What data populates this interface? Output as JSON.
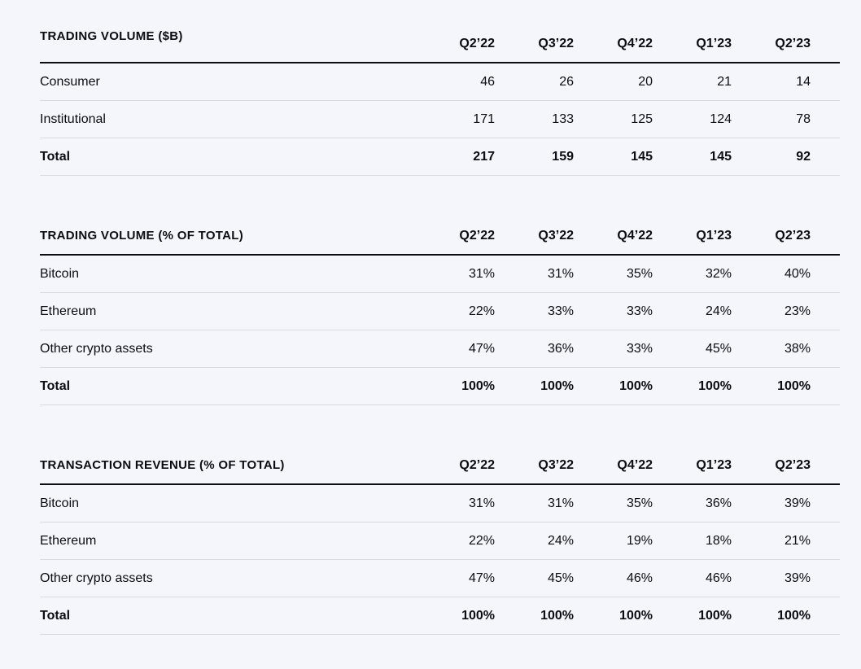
{
  "colors": {
    "background": "#f4f6fb",
    "text": "#0b0d12",
    "heavy_rule": "#0b0d12",
    "divider": "#d7dbe3"
  },
  "columns": [
    "Q2’22",
    "Q3’22",
    "Q4’22",
    "Q1’23",
    "Q2’23"
  ],
  "tables": [
    {
      "title": "TRADING VOLUME ($B)",
      "rows": [
        {
          "label": "Consumer",
          "values": [
            "46",
            "26",
            "20",
            "21",
            "14"
          ]
        },
        {
          "label": "Institutional",
          "values": [
            "171",
            "133",
            "125",
            "124",
            "78"
          ]
        },
        {
          "label": "Total",
          "values": [
            "217",
            "159",
            "145",
            "145",
            "92"
          ]
        }
      ]
    },
    {
      "title": "TRADING VOLUME (% OF TOTAL)",
      "rows": [
        {
          "label": "Bitcoin",
          "values": [
            "31%",
            "31%",
            "35%",
            "32%",
            "40%"
          ]
        },
        {
          "label": "Ethereum",
          "values": [
            "22%",
            "33%",
            "33%",
            "24%",
            "23%"
          ]
        },
        {
          "label": "Other crypto assets",
          "values": [
            "47%",
            "36%",
            "33%",
            "45%",
            "38%"
          ]
        },
        {
          "label": "Total",
          "values": [
            "100%",
            "100%",
            "100%",
            "100%",
            "100%"
          ]
        }
      ]
    },
    {
      "title": "TRANSACTION REVENUE (% OF TOTAL)",
      "rows": [
        {
          "label": "Bitcoin",
          "values": [
            "31%",
            "31%",
            "35%",
            "36%",
            "39%"
          ]
        },
        {
          "label": "Ethereum",
          "values": [
            "22%",
            "24%",
            "19%",
            "18%",
            "21%"
          ]
        },
        {
          "label": "Other crypto assets",
          "values": [
            "47%",
            "45%",
            "46%",
            "46%",
            "39%"
          ]
        },
        {
          "label": "Total",
          "values": [
            "100%",
            "100%",
            "100%",
            "100%",
            "100%"
          ]
        }
      ]
    }
  ]
}
